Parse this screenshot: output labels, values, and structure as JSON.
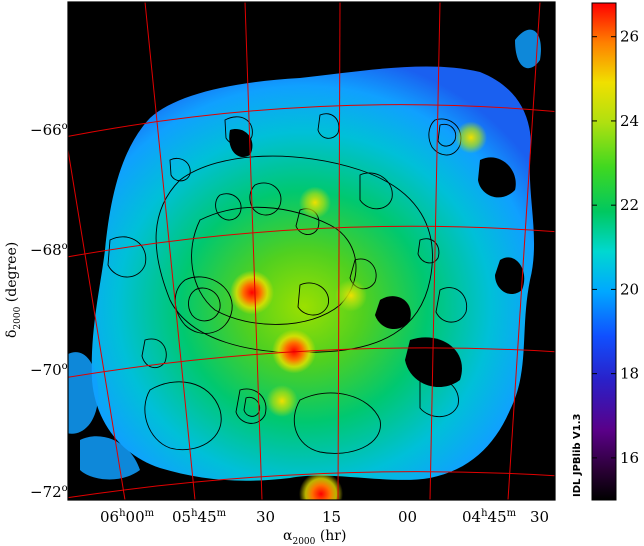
{
  "chart_data": {
    "type": "heatmap",
    "title": "",
    "xlabel": "α2000 (hr)",
    "xlabel_parts": {
      "sym": "α",
      "sub": "2000",
      "rest": " (hr)"
    },
    "ylabel": "δ2000 (degree)",
    "ylabel_parts": {
      "sym": "δ",
      "sub": "2000",
      "rest": " (degree)"
    },
    "x_ticks": [
      {
        "value": 6.0,
        "h": "06",
        "m": "00",
        "full": true
      },
      {
        "value": 5.75,
        "h": "05",
        "m": "45",
        "full": true
      },
      {
        "value": 5.5,
        "h": "",
        "m": "30",
        "full": false
      },
      {
        "value": 5.25,
        "h": "",
        "m": "15",
        "full": false
      },
      {
        "value": 5.0,
        "h": "",
        "m": "00",
        "full": false
      },
      {
        "value": 4.75,
        "h": "04",
        "m": "45",
        "full": true
      },
      {
        "value": 4.5,
        "h": "",
        "m": "30",
        "full": false
      }
    ],
    "y_ticks": [
      {
        "value": -66,
        "label": "−66"
      },
      {
        "value": -68,
        "label": "−68"
      },
      {
        "value": -70,
        "label": "−70"
      },
      {
        "value": -72,
        "label": "−72"
      }
    ],
    "colorbar": {
      "range": [
        15.0,
        26.8
      ],
      "ticks": [
        "16",
        "18",
        "20",
        "22",
        "24",
        "26"
      ],
      "tick_values": [
        16,
        18,
        20,
        22,
        24,
        26
      ]
    },
    "credit": "IDL JPBlib V1.3",
    "blobs": [
      {
        "ra": 5.66,
        "dec": -68.75,
        "level": 26.5
      },
      {
        "ra": 5.52,
        "dec": -69.7,
        "level": 25.0
      },
      {
        "ra": 5.43,
        "dec": -72.0,
        "level": 26.2
      },
      {
        "ra": 4.93,
        "dec": -66.25,
        "level": 24.0
      },
      {
        "ra": 5.45,
        "dec": -67.3,
        "level": 23.5
      },
      {
        "ra": 5.56,
        "dec": -70.5,
        "level": 23.5
      },
      {
        "ra": 5.33,
        "dec": -68.8,
        "level": 23.0
      }
    ]
  }
}
